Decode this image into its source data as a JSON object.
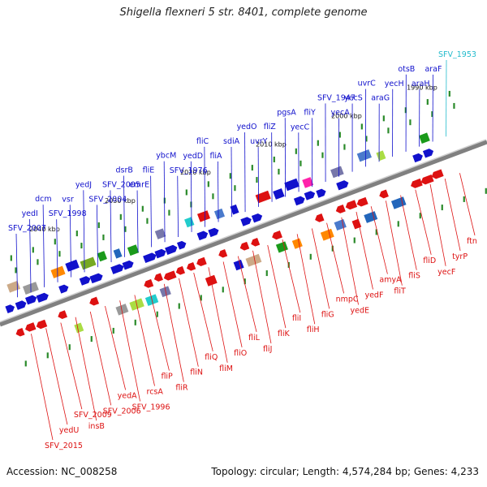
{
  "title": "Shigella flexneri 5 str. 8401, complete genome",
  "footer": {
    "accession": "Accession: NC_008258",
    "summary": "Topology: circular; Length: 4,574,284 bp; Genes: 4,233"
  },
  "colors": {
    "forward": "#1111cc",
    "reverse": "#dd1111",
    "highlight": "#22bbcc",
    "backbone": "#808080",
    "tick": "#2a8a2a"
  },
  "kbp_ticks": [
    {
      "kbp": 1990,
      "label": "1990 kbp"
    },
    {
      "kbp": 2000,
      "label": "2000 kbp"
    },
    {
      "kbp": 2010,
      "label": "2010 kbp"
    },
    {
      "kbp": 2020,
      "label": "2020 kbp"
    },
    {
      "kbp": 2030,
      "label": "2030 kbp"
    },
    {
      "kbp": 2040,
      "label": "2040 kbp"
    }
  ],
  "genes_top": [
    {
      "name": "SFV_1953",
      "color": "highlight"
    },
    {
      "name": "araF"
    },
    {
      "name": "araH"
    },
    {
      "name": "otsB"
    },
    {
      "name": "yecH"
    },
    {
      "name": "araG"
    },
    {
      "name": "uvrC"
    },
    {
      "name": "yecS"
    },
    {
      "name": "yecA"
    },
    {
      "name": "SFV_1947"
    },
    {
      "name": "fliY"
    },
    {
      "name": "yecC"
    },
    {
      "name": "pgsA"
    },
    {
      "name": "fliZ"
    },
    {
      "name": "uvrY"
    },
    {
      "name": "yedO"
    },
    {
      "name": "sdiA"
    },
    {
      "name": "fliA"
    },
    {
      "name": "fliC"
    },
    {
      "name": "yedD"
    },
    {
      "name": "SFV_1976"
    },
    {
      "name": "ybcM"
    },
    {
      "name": "fliE"
    },
    {
      "name": "emrE"
    },
    {
      "name": "dsrB"
    },
    {
      "name": "SFV_2005"
    },
    {
      "name": "SFV_2004"
    },
    {
      "name": "yedJ"
    },
    {
      "name": "vsr"
    },
    {
      "name": "SFV_1998"
    },
    {
      "name": "dcm"
    },
    {
      "name": "yedI"
    },
    {
      "name": "SFV_2007"
    }
  ],
  "genes_bottom": [
    {
      "name": "ftn"
    },
    {
      "name": "tyrP"
    },
    {
      "name": "yecF"
    },
    {
      "name": "fliD"
    },
    {
      "name": "fliS"
    },
    {
      "name": "fliT"
    },
    {
      "name": "amyA"
    },
    {
      "name": "yedF"
    },
    {
      "name": "yedE"
    },
    {
      "name": "nmpC"
    },
    {
      "name": "fliG"
    },
    {
      "name": "fliH"
    },
    {
      "name": "fliI"
    },
    {
      "name": "fliK"
    },
    {
      "name": "fliJ"
    },
    {
      "name": "fliL"
    },
    {
      "name": "fliO"
    },
    {
      "name": "fliM"
    },
    {
      "name": "fliQ"
    },
    {
      "name": "fliN"
    },
    {
      "name": "fliR"
    },
    {
      "name": "fliP"
    },
    {
      "name": "rcsA"
    },
    {
      "name": "SFV_1996"
    },
    {
      "name": "yedA"
    },
    {
      "name": "SFV_2006"
    },
    {
      "name": "insB"
    },
    {
      "name": "SFV_2009"
    },
    {
      "name": "yedU"
    },
    {
      "name": "SFV_2015"
    }
  ]
}
